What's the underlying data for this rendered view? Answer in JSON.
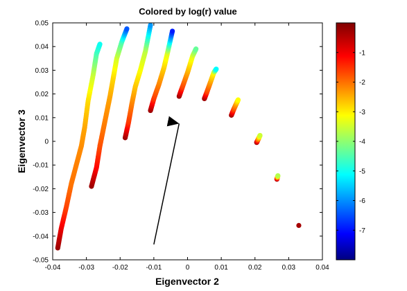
{
  "chart_data": {
    "type": "scatter",
    "title": "Colored by log(r) value",
    "xlabel": "Eigenvector 2",
    "ylabel": "Eigenvector 3",
    "xlim": [
      -0.04,
      0.04
    ],
    "ylim": [
      -0.05,
      0.05
    ],
    "x_ticks": [
      "-0.04",
      "-0.03",
      "-0.02",
      "-0.01",
      "0",
      "0.01",
      "0.02",
      "0.03",
      "0.04"
    ],
    "y_ticks": [
      "0.05",
      "0.04",
      "0.03",
      "0.02",
      "0.01",
      "0",
      "-0.01",
      "-0.02",
      "-0.03",
      "-0.04",
      "-0.05"
    ],
    "colorbar": {
      "colormap": "jet",
      "range": [
        -8,
        0
      ],
      "ticks": [
        "-1",
        "-2",
        "-3",
        "-4",
        "-5",
        "-6",
        "-7"
      ]
    },
    "color_variable": "log(r)",
    "series": [
      {
        "points": [
          [
            -0.0385,
            -0.045
          ],
          [
            -0.0375,
            -0.037
          ],
          [
            -0.036,
            -0.028
          ],
          [
            -0.0345,
            -0.018
          ],
          [
            -0.033,
            -0.01
          ],
          [
            -0.0315,
            -0.002
          ],
          [
            -0.0305,
            0.006
          ],
          [
            -0.0295,
            0.017
          ],
          [
            -0.028,
            0.028
          ],
          [
            -0.027,
            0.037
          ],
          [
            -0.026,
            0.041
          ]
        ],
        "colors": [
          -0.2,
          -0.8,
          -1.5,
          -1.9,
          -2.0,
          -2.1,
          -2.3,
          -2.7,
          -3.4,
          -4.4,
          -4.9
        ]
      },
      {
        "points": [
          [
            -0.0285,
            -0.019
          ],
          [
            -0.027,
            -0.011
          ],
          [
            -0.026,
            -0.002
          ],
          [
            -0.025,
            0.005
          ],
          [
            -0.024,
            0.012
          ],
          [
            -0.023,
            0.019
          ],
          [
            -0.022,
            0.027
          ],
          [
            -0.021,
            0.035
          ],
          [
            -0.0195,
            0.042
          ],
          [
            -0.018,
            0.0475
          ]
        ],
        "colors": [
          -0.2,
          -1.0,
          -1.6,
          -1.9,
          -2.1,
          -2.3,
          -2.7,
          -3.3,
          -4.4,
          -6.3
        ]
      },
      {
        "points": [
          [
            -0.0185,
            0.0015
          ],
          [
            -0.0175,
            0.008
          ],
          [
            -0.0165,
            0.016
          ],
          [
            -0.0155,
            0.023
          ],
          [
            -0.014,
            0.03
          ],
          [
            -0.0125,
            0.038
          ],
          [
            -0.011,
            0.049
          ]
        ],
        "colors": [
          -0.2,
          -1.4,
          -2.0,
          -2.5,
          -3.0,
          -3.5,
          -5.8
        ]
      },
      {
        "points": [
          [
            -0.011,
            0.013
          ],
          [
            -0.01,
            0.018
          ],
          [
            -0.0085,
            0.024
          ],
          [
            -0.007,
            0.031
          ],
          [
            -0.006,
            0.037
          ],
          [
            -0.0045,
            0.0465
          ]
        ],
        "colors": [
          -0.2,
          -1.4,
          -2.0,
          -2.6,
          -3.2,
          -6.8
        ]
      },
      {
        "points": [
          [
            -0.0025,
            0.019
          ],
          [
            -0.0015,
            0.023
          ],
          [
            0.0,
            0.029
          ],
          [
            0.0015,
            0.036
          ],
          [
            0.0025,
            0.039
          ]
        ],
        "colors": [
          -0.2,
          -1.5,
          -2.3,
          -3.2,
          -4.2
        ]
      },
      {
        "points": [
          [
            0.005,
            0.018
          ],
          [
            0.0058,
            0.021
          ],
          [
            0.0068,
            0.025
          ],
          [
            0.0078,
            0.029
          ],
          [
            0.0085,
            0.0305
          ]
        ],
        "colors": [
          -0.2,
          -1.5,
          -2.2,
          -3.0,
          -5.0
        ]
      },
      {
        "points": [
          [
            0.013,
            0.011
          ],
          [
            0.0137,
            0.0135
          ],
          [
            0.0145,
            0.016
          ],
          [
            0.015,
            0.0175
          ]
        ],
        "colors": [
          -0.2,
          -1.5,
          -2.3,
          -3.0
        ]
      },
      {
        "points": [
          [
            0.0205,
            -0.0005
          ],
          [
            0.021,
            0.001
          ],
          [
            0.0215,
            0.0025
          ]
        ],
        "colors": [
          -0.2,
          -2.0,
          -3.4
        ]
      },
      {
        "points": [
          [
            0.0265,
            -0.016
          ],
          [
            0.0268,
            -0.0145
          ]
        ],
        "colors": [
          -0.2,
          -3.6
        ]
      },
      {
        "points": [
          [
            0.033,
            -0.0355
          ]
        ],
        "colors": [
          -0.3
        ]
      }
    ],
    "annotations": [
      {
        "type": "arrow",
        "from": [
          -0.01,
          -0.0435
        ],
        "to": [
          -0.0025,
          0.0075
        ]
      }
    ]
  }
}
